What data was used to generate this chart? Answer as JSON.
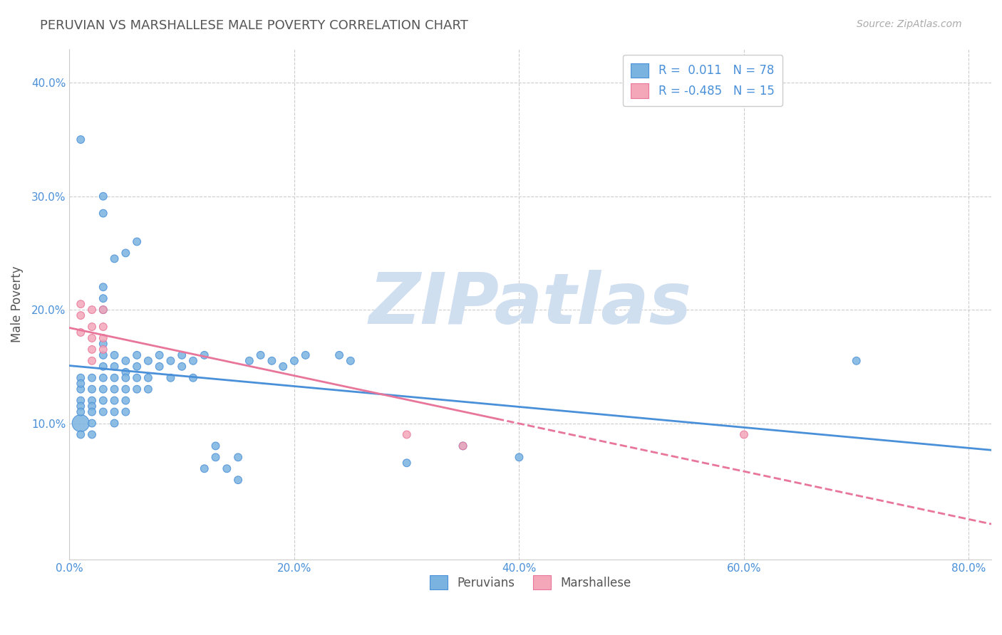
{
  "title": "PERUVIAN VS MARSHALLESE MALE POVERTY CORRELATION CHART",
  "source": "Source: ZipAtlas.com",
  "xlabel_bottom": "",
  "ylabel": "Male Poverty",
  "x_tick_labels": [
    "0.0%",
    "20.0%",
    "40.0%",
    "60.0%",
    "80.0%"
  ],
  "x_tick_vals": [
    0.0,
    0.2,
    0.4,
    0.6,
    0.8
  ],
  "y_tick_labels": [
    "10.0%",
    "20.0%",
    "30.0%",
    "40.0%"
  ],
  "y_tick_vals": [
    0.1,
    0.2,
    0.3,
    0.4
  ],
  "xlim": [
    0.0,
    0.82
  ],
  "ylim": [
    -0.02,
    0.43
  ],
  "peruvian_color": "#7ab3e0",
  "marshallese_color": "#f4a7b9",
  "peruvian_R": 0.011,
  "peruvian_N": 78,
  "marshallese_R": -0.485,
  "marshallese_N": 15,
  "legend_label_1": "Peruvians",
  "legend_label_2": "Marshallese",
  "watermark_text": "ZIPatlas",
  "watermark_color": "#d0dff0",
  "title_color": "#555555",
  "axis_label_color": "#555555",
  "tick_label_color": "#4a90d9",
  "regression_blue_color": "#4a90d9",
  "regression_pink_color": "#e8759a",
  "regression_pink_dashed_color": "#e8759a",
  "peruvian_scatter": [
    [
      0.01,
      0.12
    ],
    [
      0.01,
      0.14
    ],
    [
      0.01,
      0.115
    ],
    [
      0.01,
      0.13
    ],
    [
      0.01,
      0.135
    ],
    [
      0.01,
      0.1
    ],
    [
      0.01,
      0.09
    ],
    [
      0.01,
      0.11
    ],
    [
      0.02,
      0.13
    ],
    [
      0.02,
      0.14
    ],
    [
      0.02,
      0.12
    ],
    [
      0.02,
      0.115
    ],
    [
      0.02,
      0.11
    ],
    [
      0.02,
      0.1
    ],
    [
      0.02,
      0.09
    ],
    [
      0.03,
      0.13
    ],
    [
      0.03,
      0.12
    ],
    [
      0.03,
      0.14
    ],
    [
      0.03,
      0.11
    ],
    [
      0.03,
      0.15
    ],
    [
      0.03,
      0.16
    ],
    [
      0.03,
      0.17
    ],
    [
      0.03,
      0.2
    ],
    [
      0.03,
      0.21
    ],
    [
      0.03,
      0.22
    ],
    [
      0.04,
      0.14
    ],
    [
      0.04,
      0.15
    ],
    [
      0.04,
      0.16
    ],
    [
      0.04,
      0.13
    ],
    [
      0.04,
      0.12
    ],
    [
      0.04,
      0.11
    ],
    [
      0.04,
      0.1
    ],
    [
      0.05,
      0.155
    ],
    [
      0.05,
      0.145
    ],
    [
      0.05,
      0.14
    ],
    [
      0.05,
      0.13
    ],
    [
      0.05,
      0.12
    ],
    [
      0.05,
      0.11
    ],
    [
      0.06,
      0.15
    ],
    [
      0.06,
      0.14
    ],
    [
      0.06,
      0.16
    ],
    [
      0.06,
      0.13
    ],
    [
      0.07,
      0.155
    ],
    [
      0.07,
      0.14
    ],
    [
      0.07,
      0.13
    ],
    [
      0.08,
      0.16
    ],
    [
      0.08,
      0.15
    ],
    [
      0.09,
      0.155
    ],
    [
      0.09,
      0.14
    ],
    [
      0.1,
      0.16
    ],
    [
      0.1,
      0.15
    ],
    [
      0.11,
      0.155
    ],
    [
      0.11,
      0.14
    ],
    [
      0.12,
      0.16
    ],
    [
      0.12,
      0.06
    ],
    [
      0.13,
      0.08
    ],
    [
      0.13,
      0.07
    ],
    [
      0.14,
      0.06
    ],
    [
      0.15,
      0.07
    ],
    [
      0.15,
      0.05
    ],
    [
      0.16,
      0.155
    ],
    [
      0.17,
      0.16
    ],
    [
      0.18,
      0.155
    ],
    [
      0.19,
      0.15
    ],
    [
      0.2,
      0.155
    ],
    [
      0.21,
      0.16
    ],
    [
      0.24,
      0.16
    ],
    [
      0.25,
      0.155
    ],
    [
      0.03,
      0.285
    ],
    [
      0.03,
      0.3
    ],
    [
      0.04,
      0.245
    ],
    [
      0.05,
      0.25
    ],
    [
      0.06,
      0.26
    ],
    [
      0.01,
      0.35
    ],
    [
      0.7,
      0.155
    ],
    [
      0.35,
      0.08
    ],
    [
      0.4,
      0.07
    ],
    [
      0.3,
      0.065
    ]
  ],
  "marshallese_scatter": [
    [
      0.01,
      0.195
    ],
    [
      0.01,
      0.18
    ],
    [
      0.02,
      0.2
    ],
    [
      0.02,
      0.185
    ],
    [
      0.02,
      0.175
    ],
    [
      0.02,
      0.165
    ],
    [
      0.02,
      0.155
    ],
    [
      0.03,
      0.2
    ],
    [
      0.03,
      0.185
    ],
    [
      0.03,
      0.175
    ],
    [
      0.03,
      0.165
    ],
    [
      0.3,
      0.09
    ],
    [
      0.6,
      0.09
    ],
    [
      0.35,
      0.08
    ],
    [
      0.01,
      0.205
    ]
  ],
  "peruvian_sizes": [
    60,
    60,
    60,
    60,
    60,
    300,
    60,
    60,
    60,
    60,
    60,
    60,
    60,
    60,
    60,
    60,
    60,
    60,
    60,
    60,
    60,
    60,
    60,
    60,
    60,
    60,
    60,
    60,
    60,
    60,
    60,
    60,
    60,
    60,
    60,
    60,
    60,
    60,
    60,
    60,
    60,
    60,
    60,
    60,
    60,
    60,
    60,
    60,
    60,
    60,
    60,
    60,
    60,
    60,
    60,
    60,
    60,
    60,
    60,
    60,
    60,
    60,
    60,
    60,
    60,
    60,
    60,
    60,
    60,
    60,
    60,
    60,
    60,
    60,
    60,
    60,
    60,
    60
  ],
  "marshallese_sizes": [
    60,
    60,
    60,
    60,
    60,
    60,
    60,
    60,
    60,
    60,
    60,
    60,
    60,
    60,
    60
  ]
}
